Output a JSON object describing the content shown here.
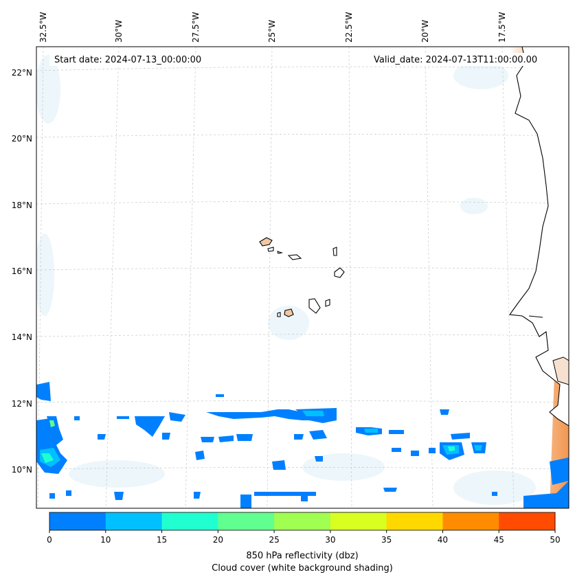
{
  "map": {
    "start_date": "Start date: 2024-07-13_00:00:00",
    "valid_date": "Valid_date: 2024-07-13T11:00:00.00",
    "lon_labels": [
      "32.5°W",
      "30°W",
      "27.5°W",
      "25°W",
      "22.5°W",
      "20°W",
      "17.5°W"
    ],
    "lat_labels": [
      "22°N",
      "20°N",
      "18°N",
      "16°N",
      "14°N",
      "12°N",
      "10°N"
    ],
    "gridlines": true
  },
  "colorbar": {
    "ticks": [
      "0",
      "10",
      "15",
      "20",
      "25",
      "30",
      "35",
      "40",
      "45",
      "50"
    ],
    "colors": [
      "#0080ff",
      "#00c0ff",
      "#20ffd0",
      "#60ff90",
      "#a0ff50",
      "#d8ff20",
      "#ffd800",
      "#ff8c00",
      "#ff4c00"
    ],
    "title_line1": "850 hPa reflectivity (dbz)",
    "title_line2": "Cloud cover (white background shading)"
  }
}
